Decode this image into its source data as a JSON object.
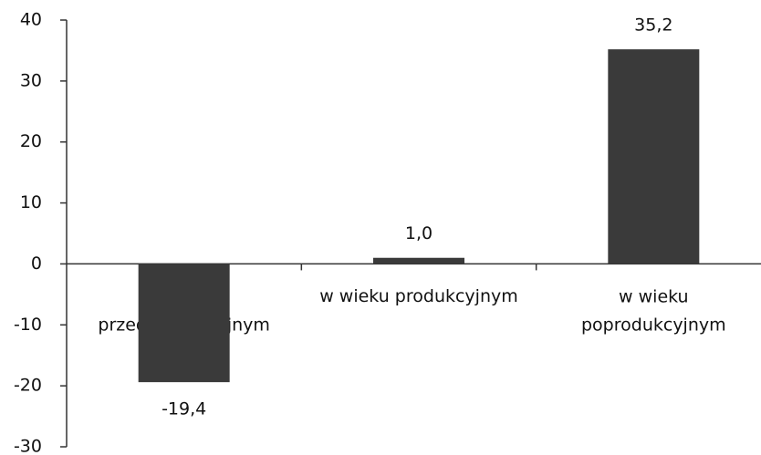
{
  "chart_data": {
    "type": "bar",
    "categories": [
      "w wieku przedprodukcyjnym",
      "w wieku produkcyjnym",
      "w wieku poprodukcyjnym"
    ],
    "values": [
      -19.4,
      1.0,
      35.2
    ],
    "value_labels": [
      "-19,4",
      "1,0",
      "35,2"
    ],
    "color": "#3a3a3a",
    "ylim": [
      -30,
      40
    ],
    "yticks": [
      -30,
      -20,
      -10,
      0,
      10,
      20,
      30,
      40
    ],
    "grid": false
  }
}
